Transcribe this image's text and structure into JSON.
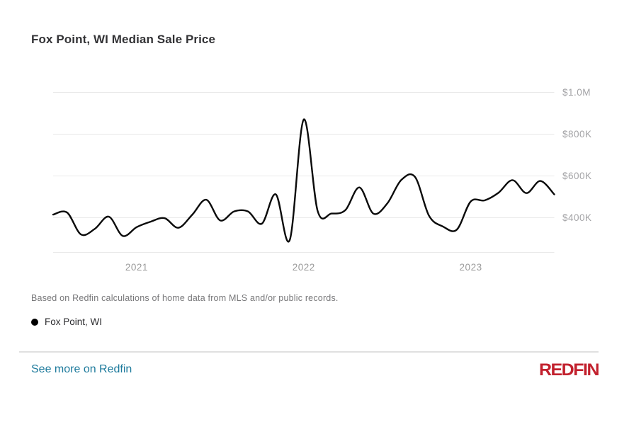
{
  "header": {
    "title": "Fox Point, WI Median Sale Price"
  },
  "chart_data": {
    "type": "line",
    "title": "Fox Point, WI Median Sale Price",
    "x": [
      "Jul 2020",
      "Aug 2020",
      "Sep 2020",
      "Oct 2020",
      "Nov 2020",
      "Dec 2020",
      "Jan 2021",
      "Feb 2021",
      "Mar 2021",
      "Apr 2021",
      "May 2021",
      "Jun 2021",
      "Jul 2021",
      "Aug 2021",
      "Sep 2021",
      "Oct 2021",
      "Nov 2021",
      "Dec 2021",
      "Jan 2022",
      "Feb 2022",
      "Mar 2022",
      "Apr 2022",
      "May 2022",
      "Jun 2022",
      "Jul 2022",
      "Aug 2022",
      "Sep 2022",
      "Oct 2022",
      "Nov 2022",
      "Dec 2022",
      "Jan 2023",
      "Feb 2023",
      "Mar 2023",
      "Apr 2023",
      "May 2023",
      "Jun 2023",
      "Jul 2023"
    ],
    "series": [
      {
        "name": "Fox Point, WI",
        "values": [
          415000,
          425000,
          320000,
          347000,
          405000,
          313000,
          355000,
          381000,
          398000,
          352000,
          415000,
          486000,
          387000,
          430000,
          430000,
          372000,
          512000,
          294000,
          870000,
          433000,
          420000,
          437000,
          545000,
          420000,
          468000,
          580000,
          595000,
          410000,
          358000,
          343000,
          478000,
          483000,
          520000,
          580000,
          518000,
          576000,
          512000
        ]
      }
    ],
    "y_axis": {
      "ticks": [
        {
          "label": "$400K",
          "value": 400000
        },
        {
          "label": "$600K",
          "value": 600000
        },
        {
          "label": "$800K",
          "value": 800000
        },
        {
          "label": "$1.0M",
          "value": 1000000
        }
      ],
      "side": "right"
    },
    "x_axis": {
      "ticks": [
        {
          "label": "2021",
          "month_index": 6
        },
        {
          "label": "2022",
          "month_index": 18
        },
        {
          "label": "2023",
          "month_index": 30
        }
      ]
    },
    "grid": true,
    "legend_position": "bottom-left"
  },
  "footnote": {
    "text": "Based on Redfin calculations of home data from MLS and/or public records."
  },
  "legend": {
    "label": "Fox Point, WI"
  },
  "footer": {
    "link_label": "See more on Redfin",
    "logo_text": "REDFIN"
  },
  "colors": {
    "line": "#0b0b0b",
    "grid": "#e9e9e9",
    "y_tick_label": "#a3a3a6",
    "x_tick_label": "#9b9b9b",
    "link": "#1d7a9c",
    "logo_red": "#c2202d",
    "title": "#333336",
    "footnote": "#777779"
  }
}
